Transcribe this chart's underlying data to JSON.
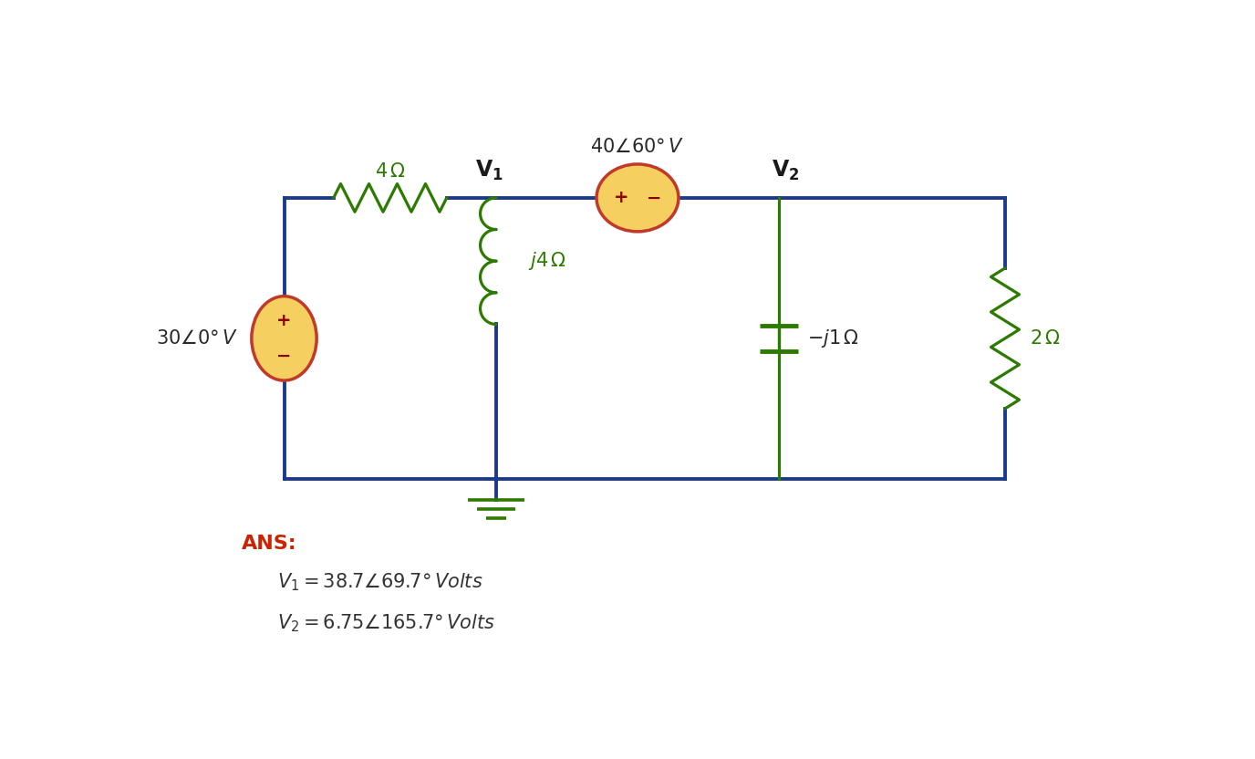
{
  "bg_color": "#ffffff",
  "circuit_color": "#1a3a8c",
  "wire_lw": 2.8,
  "resistor_color": "#2d7a00",
  "inductor_color": "#2d7a00",
  "capacitor_color": "#2d7a00",
  "source_fill": "#f5d060",
  "source_edge": "#c0392b",
  "source_lw": 2.5,
  "text_color": "#2a2a2a",
  "ans_color": "#cc2200",
  "node_label_color": "#1a1a1a",
  "ans_label": "ANS:",
  "v1_ans": "$V_1 = 38.7\\angle69.7°\\,Volts$",
  "v2_ans": "$V_2 = 6.75\\angle165.7°\\,Volts$",
  "source_left_label": "$30\\angle0°\\,V$",
  "source_top_label": "$40\\angle60°\\,V$",
  "resistor_top_label": "$4\\,\\Omega$",
  "inductor_label": "$j4\\,\\Omega$",
  "capacitor_label": "$-j1\\,\\Omega$",
  "resistor_right_label": "$2\\,\\Omega$",
  "node1_label": "$\\mathbf{V_1}$",
  "node2_label": "$\\mathbf{V_2}$"
}
